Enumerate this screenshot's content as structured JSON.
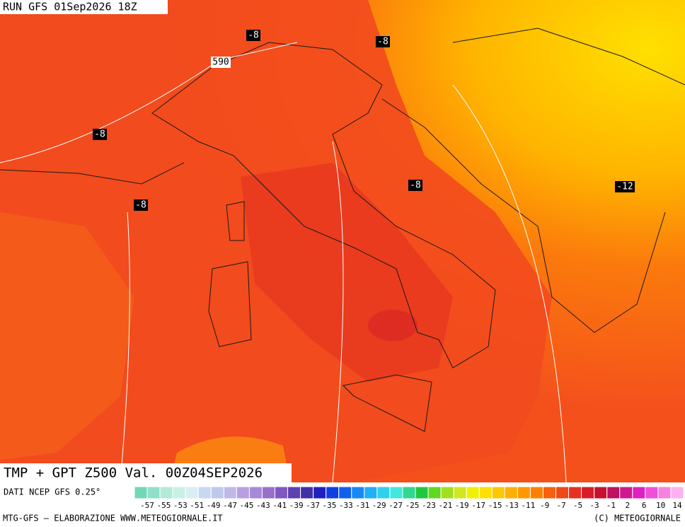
{
  "header": {
    "run": "RUN GFS 01Sep2026 18Z"
  },
  "map": {
    "contour_labels": [
      "-8",
      "-8",
      "590",
      "-8",
      "-8",
      "-8",
      "-12"
    ]
  },
  "product": {
    "title": "TMP + GPT Z500 Val. 00Z04SEP2026",
    "source": "DATI NCEP GFS 0.25°"
  },
  "legend": {
    "labels": [
      -57,
      -55,
      -53,
      -51,
      -49,
      -47,
      -45,
      -43,
      -41,
      -39,
      -37,
      -35,
      -33,
      -31,
      -29,
      -27,
      -25,
      -23,
      -21,
      -19,
      -17,
      -15,
      -13,
      -11,
      -9,
      -7,
      -5,
      -3,
      -1,
      2,
      6,
      10,
      14
    ]
  },
  "footer": {
    "left": "MTG-GFS — ELABORAZIONE WWW.METEOGIORNALE.IT",
    "right": "(C) METEOGIORNALE"
  }
}
